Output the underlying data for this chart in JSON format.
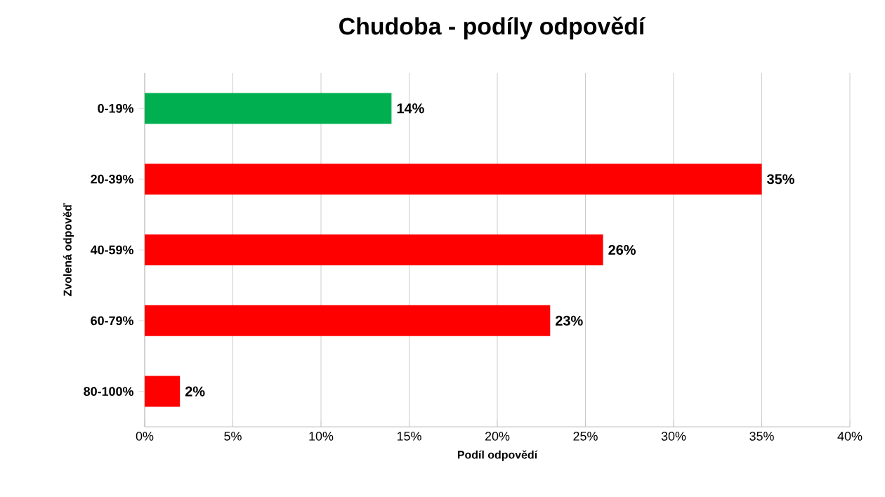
{
  "chart_data": {
    "type": "bar",
    "orientation": "horizontal",
    "title": "Chudoba - podíly odpovědí",
    "xlabel": "Podíl odpovědí",
    "ylabel": "Zvolená odpověď",
    "categories": [
      "0-19%",
      "20-39%",
      "40-59%",
      "60-79%",
      "80-100%"
    ],
    "values": [
      14,
      35,
      26,
      23,
      2
    ],
    "colors": [
      "#00b050",
      "#ff0000",
      "#ff0000",
      "#ff0000",
      "#ff0000"
    ],
    "value_labels": [
      "14%",
      "35%",
      "26%",
      "23%",
      "2%"
    ],
    "xlim": [
      0,
      40
    ],
    "xticks": [
      {
        "value": 0,
        "label": "0%"
      },
      {
        "value": 5,
        "label": "5%"
      },
      {
        "value": 10,
        "label": "10%"
      },
      {
        "value": 15,
        "label": "15%"
      },
      {
        "value": 20,
        "label": "20%"
      },
      {
        "value": 25,
        "label": "25%"
      },
      {
        "value": 30,
        "label": "30%"
      },
      {
        "value": 35,
        "label": "35%"
      },
      {
        "value": 40,
        "label": "40%"
      }
    ],
    "grid": "x"
  }
}
